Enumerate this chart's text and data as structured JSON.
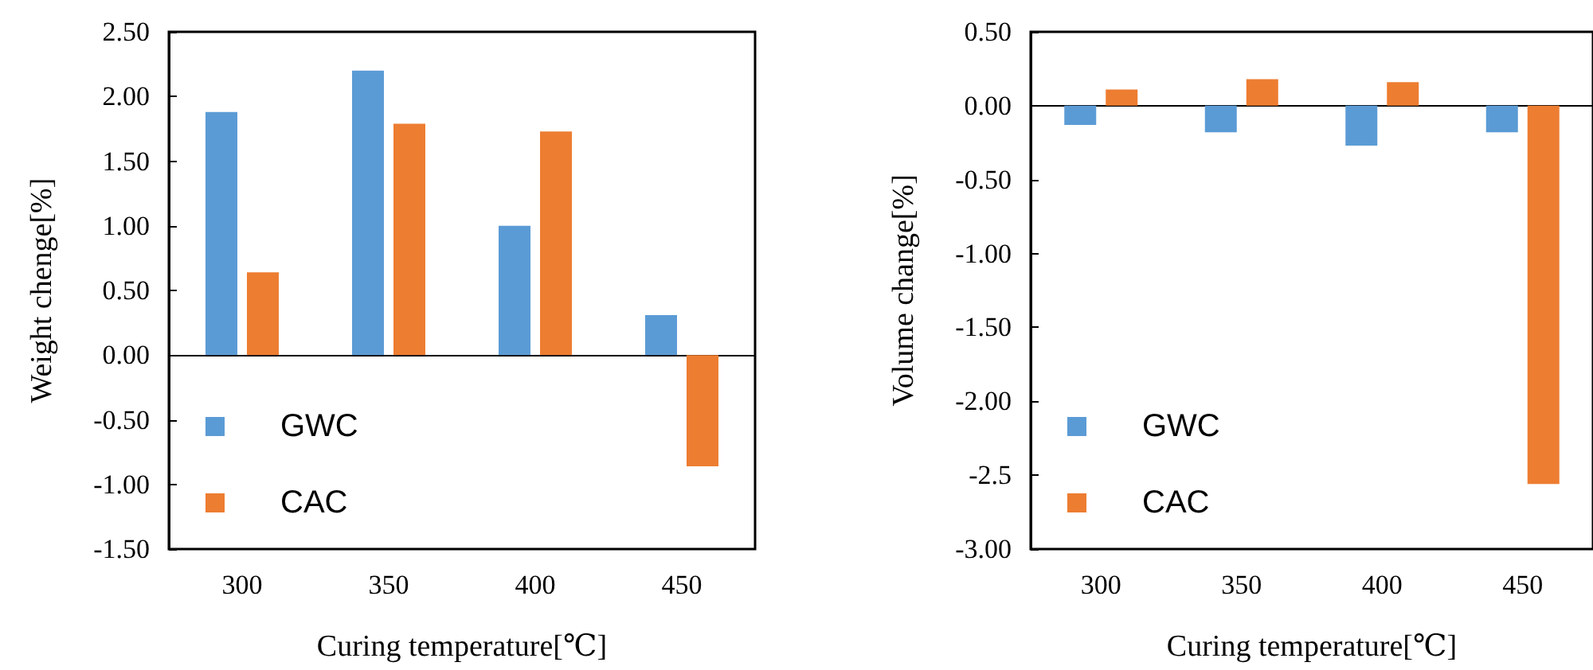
{
  "chart_data": [
    {
      "type": "bar",
      "categories": [
        "300",
        "350",
        "400",
        "450"
      ],
      "xlabel": "Curing temperature[℃]",
      "ylabel": "Weight chenge[%]",
      "series": [
        {
          "name": "GWC",
          "color": "#5b9bd5",
          "values": [
            1.88,
            2.2,
            1.0,
            0.31
          ]
        },
        {
          "name": "CAC",
          "color": "#ed7d31",
          "values": [
            0.64,
            1.79,
            1.73,
            -0.86
          ]
        }
      ],
      "ylim": [
        -1.5,
        2.5
      ],
      "yticks": [
        {
          "value": -1.5,
          "label": "-1.50"
        },
        {
          "value": -1,
          "label": "-1.00"
        },
        {
          "value": -0.5,
          "label": "-0.50"
        },
        {
          "value": 0,
          "label": "0.00"
        },
        {
          "value": 0.5,
          "label": "0.50"
        },
        {
          "value": 1,
          "label": "1.00"
        },
        {
          "value": 1.5,
          "label": "1.50"
        },
        {
          "value": 2,
          "label": "2.00"
        },
        {
          "value": 2.5,
          "label": "2.50"
        }
      ],
      "legend": "bottom left"
    },
    {
      "type": "bar",
      "categories": [
        "300",
        "350",
        "400",
        "450"
      ],
      "xlabel": "Curing temperature[℃]",
      "ylabel": "Volume change[%]",
      "series": [
        {
          "name": "GWC",
          "color": "#5b9bd5",
          "values": [
            -0.13,
            -0.18,
            -0.27,
            -0.18
          ]
        },
        {
          "name": "CAC",
          "color": "#ed7d31",
          "values": [
            0.11,
            0.18,
            0.16,
            -2.56
          ]
        }
      ],
      "ylim": [
        -3,
        0.5
      ],
      "yticks": [
        {
          "value": -3,
          "label": "-3.00"
        },
        -2.5,
        {
          "value": -2,
          "label": "-2.00"
        },
        {
          "value": -1.5,
          "label": "-1.50"
        },
        {
          "value": -1,
          "label": "-1.00"
        },
        {
          "value": -0.5,
          "label": "-0.50"
        },
        {
          "value": 0,
          "label": "0.00"
        },
        {
          "value": 0.5,
          "label": "0.50"
        }
      ],
      "legend": "bottom left"
    }
  ]
}
